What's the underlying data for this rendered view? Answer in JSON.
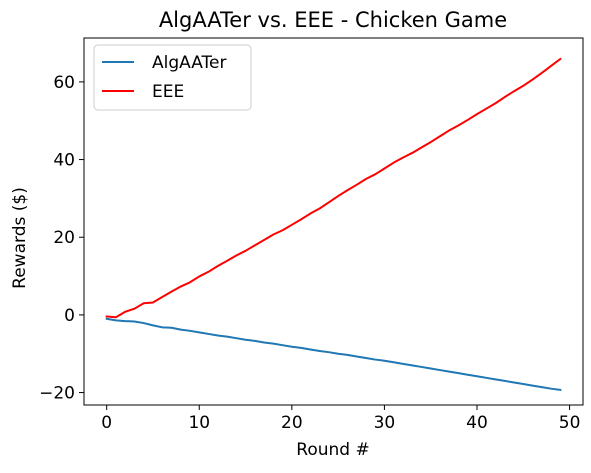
{
  "chart_data": {
    "type": "line",
    "title": "AlgAATer vs. EEE - Chicken Game",
    "xlabel": "Round #",
    "ylabel": "Rewards ($)",
    "xlim": [
      -2.45,
      51.45
    ],
    "ylim": [
      -23.2,
      71.3
    ],
    "xticks": [
      0,
      10,
      20,
      30,
      40,
      50
    ],
    "yticks": [
      -20,
      0,
      20,
      40,
      60
    ],
    "xtick_labels": [
      "0",
      "10",
      "20",
      "30",
      "40",
      "50"
    ],
    "ytick_labels": [
      "−20",
      "0",
      "20",
      "40",
      "60"
    ],
    "grid": false,
    "legend_position": "top-left",
    "series": [
      {
        "name": "AlgAATer",
        "color": "#1f77b4",
        "x": [
          0,
          1,
          2,
          3,
          4,
          5,
          6,
          7,
          8,
          9,
          10,
          11,
          12,
          13,
          14,
          15,
          16,
          17,
          18,
          19,
          20,
          21,
          22,
          23,
          24,
          25,
          26,
          27,
          28,
          29,
          30,
          31,
          32,
          33,
          34,
          35,
          36,
          37,
          38,
          39,
          40,
          41,
          42,
          43,
          44,
          45,
          46,
          47,
          48,
          49
        ],
        "y": [
          -1.0,
          -1.4,
          -1.6,
          -1.7,
          -2.1,
          -2.7,
          -3.2,
          -3.3,
          -3.8,
          -4.1,
          -4.5,
          -4.9,
          -5.3,
          -5.6,
          -6.0,
          -6.4,
          -6.7,
          -7.1,
          -7.4,
          -7.8,
          -8.2,
          -8.5,
          -8.9,
          -9.3,
          -9.6,
          -10.0,
          -10.3,
          -10.7,
          -11.1,
          -11.5,
          -11.8,
          -12.2,
          -12.6,
          -13.0,
          -13.4,
          -13.8,
          -14.2,
          -14.6,
          -15.0,
          -15.4,
          -15.8,
          -16.2,
          -16.6,
          -17.0,
          -17.4,
          -17.8,
          -18.2,
          -18.6,
          -19.0,
          -19.3
        ]
      },
      {
        "name": "EEE",
        "color": "#ff0000",
        "x": [
          0,
          1,
          2,
          3,
          4,
          5,
          6,
          7,
          8,
          9,
          10,
          11,
          12,
          13,
          14,
          15,
          16,
          17,
          18,
          19,
          20,
          21,
          22,
          23,
          24,
          25,
          26,
          27,
          28,
          29,
          30,
          31,
          32,
          33,
          34,
          35,
          36,
          37,
          38,
          39,
          40,
          41,
          42,
          43,
          44,
          45,
          46,
          47,
          48,
          49
        ],
        "y": [
          -0.4,
          -0.6,
          0.8,
          1.6,
          3.0,
          3.2,
          4.6,
          6.0,
          7.3,
          8.4,
          9.9,
          11.1,
          12.6,
          13.9,
          15.3,
          16.5,
          17.9,
          19.3,
          20.7,
          21.8,
          23.2,
          24.6,
          26.1,
          27.4,
          29.0,
          30.6,
          32.1,
          33.5,
          35.0,
          36.2,
          37.7,
          39.2,
          40.5,
          41.7,
          43.1,
          44.5,
          46.0,
          47.5,
          48.8,
          50.2,
          51.7,
          53.1,
          54.5,
          56.1,
          57.6,
          59.0,
          60.6,
          62.3,
          64.1,
          65.9
        ]
      }
    ]
  }
}
